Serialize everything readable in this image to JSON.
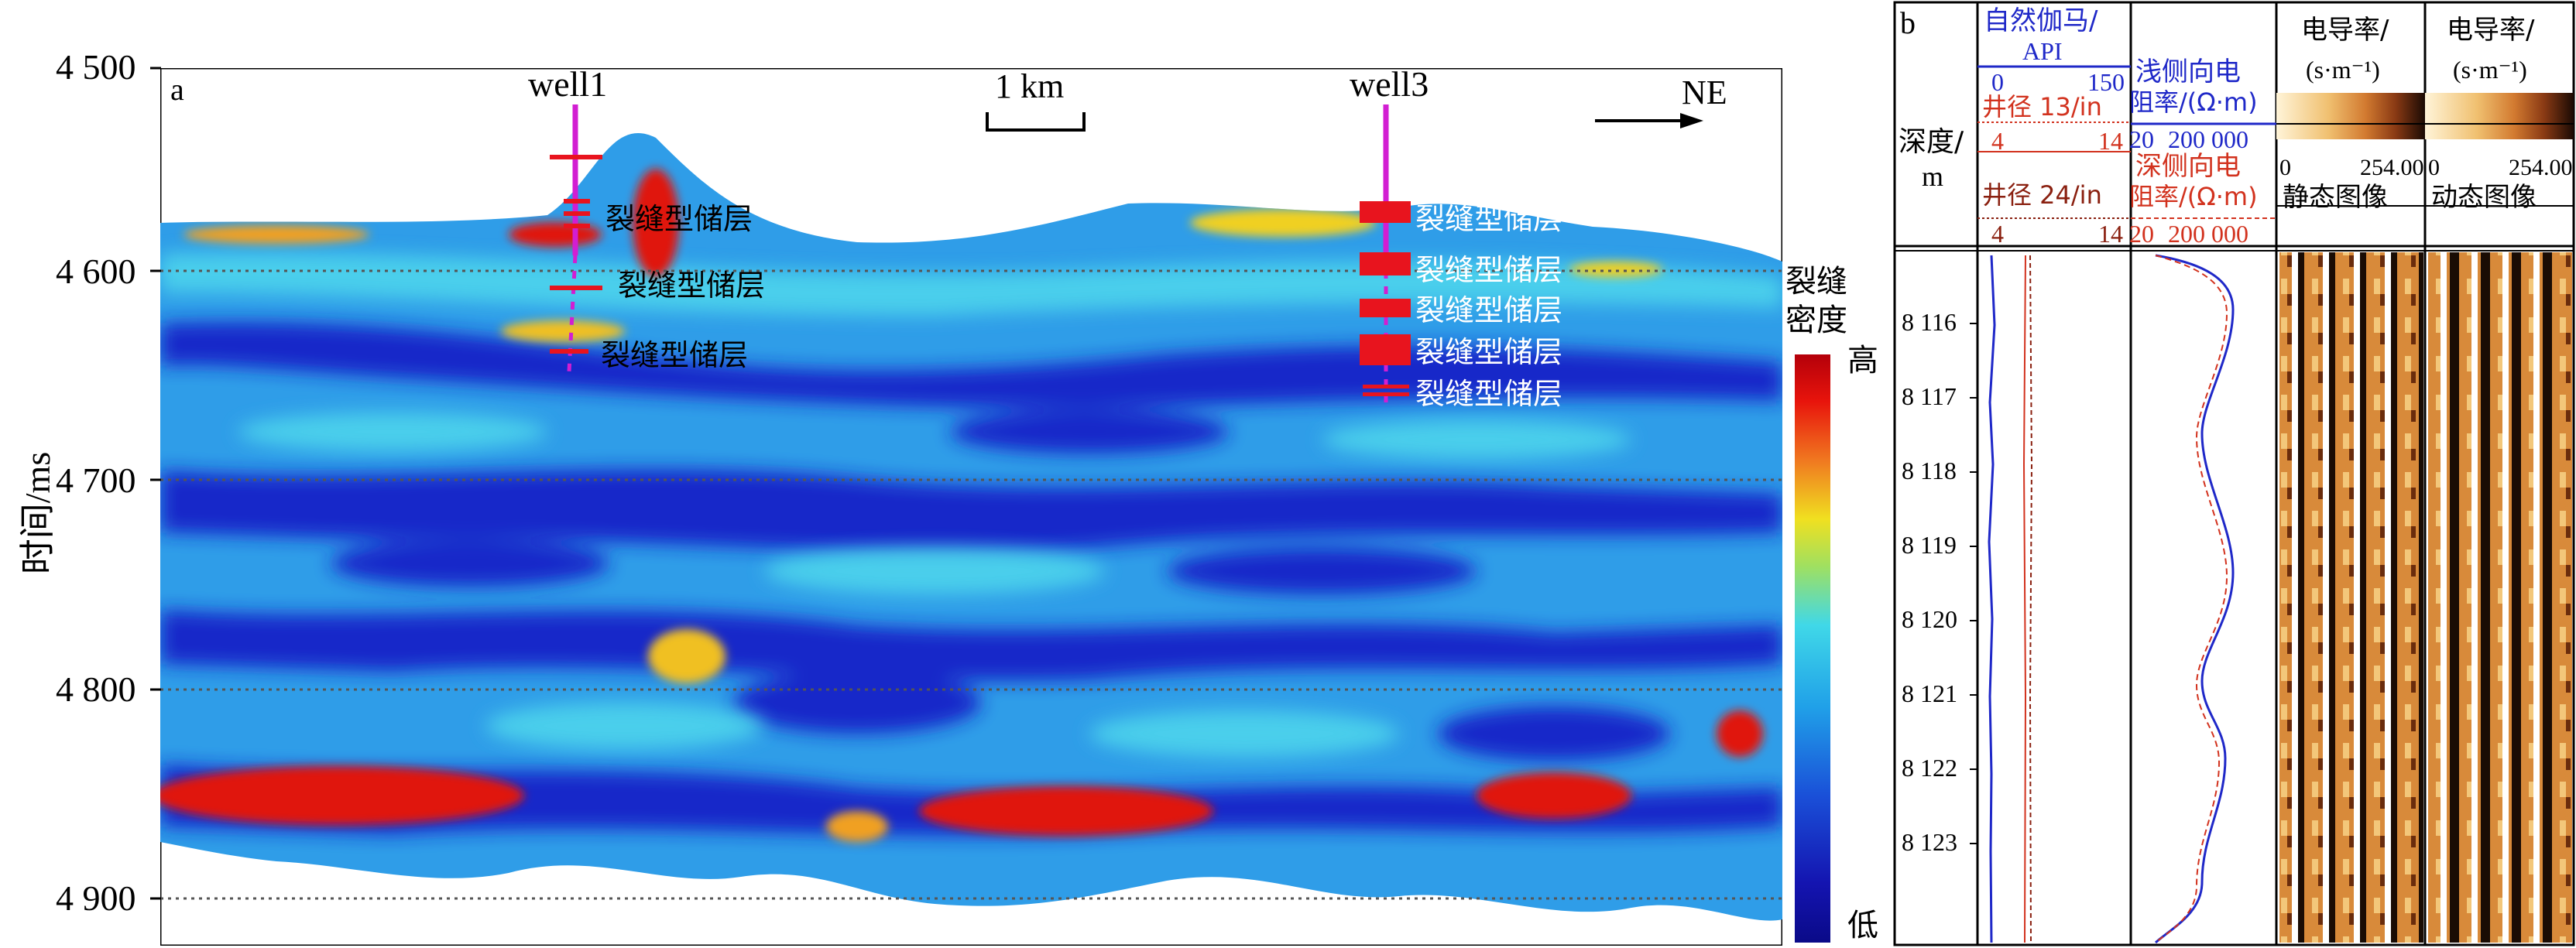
{
  "panel_a": {
    "label": "a",
    "y_axis_label": "时间/ms",
    "y_ticks": [
      "4 500",
      "4 600",
      "4 700",
      "4 800",
      "4 900"
    ],
    "y_tick_values": [
      4500,
      4600,
      4700,
      4800,
      4900
    ],
    "wells": [
      "well1",
      "well3"
    ],
    "scale_bar": "1 km",
    "direction": "NE",
    "reservoir_label": "裂缝型储层",
    "colorbar_title_1": "裂缝",
    "colorbar_title_2": "密度",
    "colorbar_high": "高",
    "colorbar_low": "低",
    "colors": {
      "well": "#d21ed2",
      "marker": "#e8141e",
      "gridline": "#555555"
    }
  },
  "panel_b": {
    "label": "b",
    "depth_header_1": "深度/",
    "depth_header_2": "m",
    "depth_ticks": [
      "8 116",
      "8 117",
      "8 118",
      "8 119",
      "8 120",
      "8 121",
      "8 122",
      "8 123"
    ],
    "gr_title_1": "自然伽马/",
    "gr_title_2": "API",
    "gr_min": "0",
    "gr_max": "150",
    "cal13_title": "井径 13/in",
    "cal13_min": "4",
    "cal13_max": "14",
    "cal24_title": "井径 24/in",
    "cal24_min": "4",
    "cal24_max": "14",
    "lls_title_1": "浅侧向电",
    "lls_title_2": "阻率/(Ω·m)",
    "lls_min": "20",
    "lls_max": "200 000",
    "lld_title_1": "深侧向电",
    "lld_title_2": "阻率/(Ω·m)",
    "lld_min": "20",
    "lld_max": "200 000",
    "cond_title_1": "电导率/",
    "cond_title_2": "(s·m⁻¹)",
    "cond_scale_min": "0",
    "cond_scale_max": "254.00",
    "static_image_label": "静态图像",
    "dynamic_image_label": "动态图像",
    "colors": {
      "blue": "#1f28c8",
      "red": "#d2321e"
    }
  }
}
